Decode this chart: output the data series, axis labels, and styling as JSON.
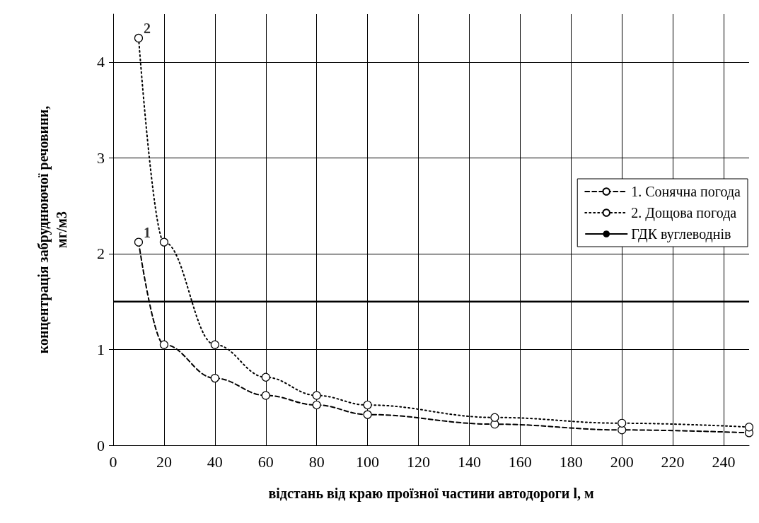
{
  "chart_data": {
    "type": "line",
    "xlabel": "відстань від краю проїзної частини автодороги l, м",
    "ylabel": "концентрація забруднюючої речовини,\nмг/м3",
    "x": [
      10,
      20,
      40,
      60,
      80,
      100,
      150,
      200,
      250
    ],
    "series": [
      {
        "name": "1. Сонячна погода",
        "color": "#000000",
        "line_style": "dashed",
        "values": [
          2.12,
          1.05,
          0.7,
          0.52,
          0.42,
          0.32,
          0.22,
          0.16,
          0.13
        ]
      },
      {
        "name": "2. Дощова погода",
        "color": "#000000",
        "line_style": "dotted",
        "values": [
          4.25,
          2.12,
          1.05,
          0.71,
          0.52,
          0.42,
          0.29,
          0.23,
          0.19
        ]
      }
    ],
    "ref_lines": [
      {
        "axis": "y",
        "value": 1.5,
        "label": "ГДК вуглеводнів",
        "color": "#000000",
        "line_style": "solid"
      }
    ],
    "annotations": [
      {
        "text": "1",
        "x": 10,
        "y": 2.12
      },
      {
        "text": "2",
        "x": 10,
        "y": 4.25
      }
    ],
    "xlim": [
      0,
      250
    ],
    "xticks": [
      0,
      20,
      40,
      60,
      80,
      100,
      120,
      140,
      160,
      180,
      200,
      220,
      240
    ],
    "ylim": [
      0,
      4.5
    ],
    "yticks": [
      0,
      1,
      2,
      3,
      4
    ],
    "grid": true,
    "legend": "right",
    "marker": "circle"
  }
}
